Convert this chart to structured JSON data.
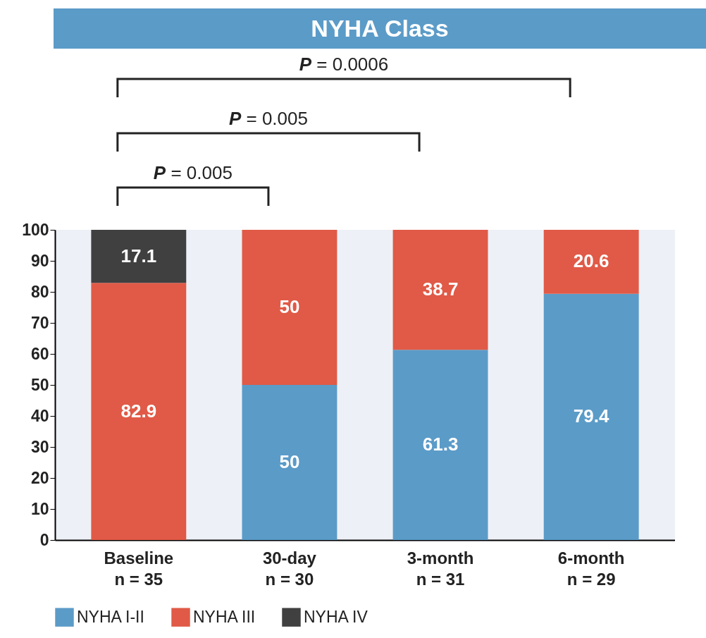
{
  "chart_data": {
    "type": "bar",
    "title": "NYHA Class",
    "stacked": true,
    "categories": [
      "Baseline\nn = 35",
      "30-day\nn = 30",
      "3-month\nn = 31",
      "6-month\nn = 29"
    ],
    "series": [
      {
        "name": "NYHA  I-II",
        "color": "#5b9bc8",
        "values": [
          null,
          50,
          61.3,
          79.4
        ]
      },
      {
        "name": "NYHA  III",
        "color": "#e05a47",
        "values": [
          82.9,
          50,
          38.7,
          20.6
        ]
      },
      {
        "name": "NYHA  IV",
        "color": "#404040",
        "values": [
          17.1,
          null,
          null,
          null
        ]
      }
    ],
    "ylim": [
      0,
      100
    ],
    "yticks": [
      0,
      10,
      20,
      30,
      40,
      50,
      60,
      70,
      80,
      90,
      100
    ],
    "data_labels": true,
    "legend": "bottom",
    "grid": false,
    "annotations": [
      "P = 0.0006",
      "P = 0.005",
      "P = 0.005"
    ]
  }
}
